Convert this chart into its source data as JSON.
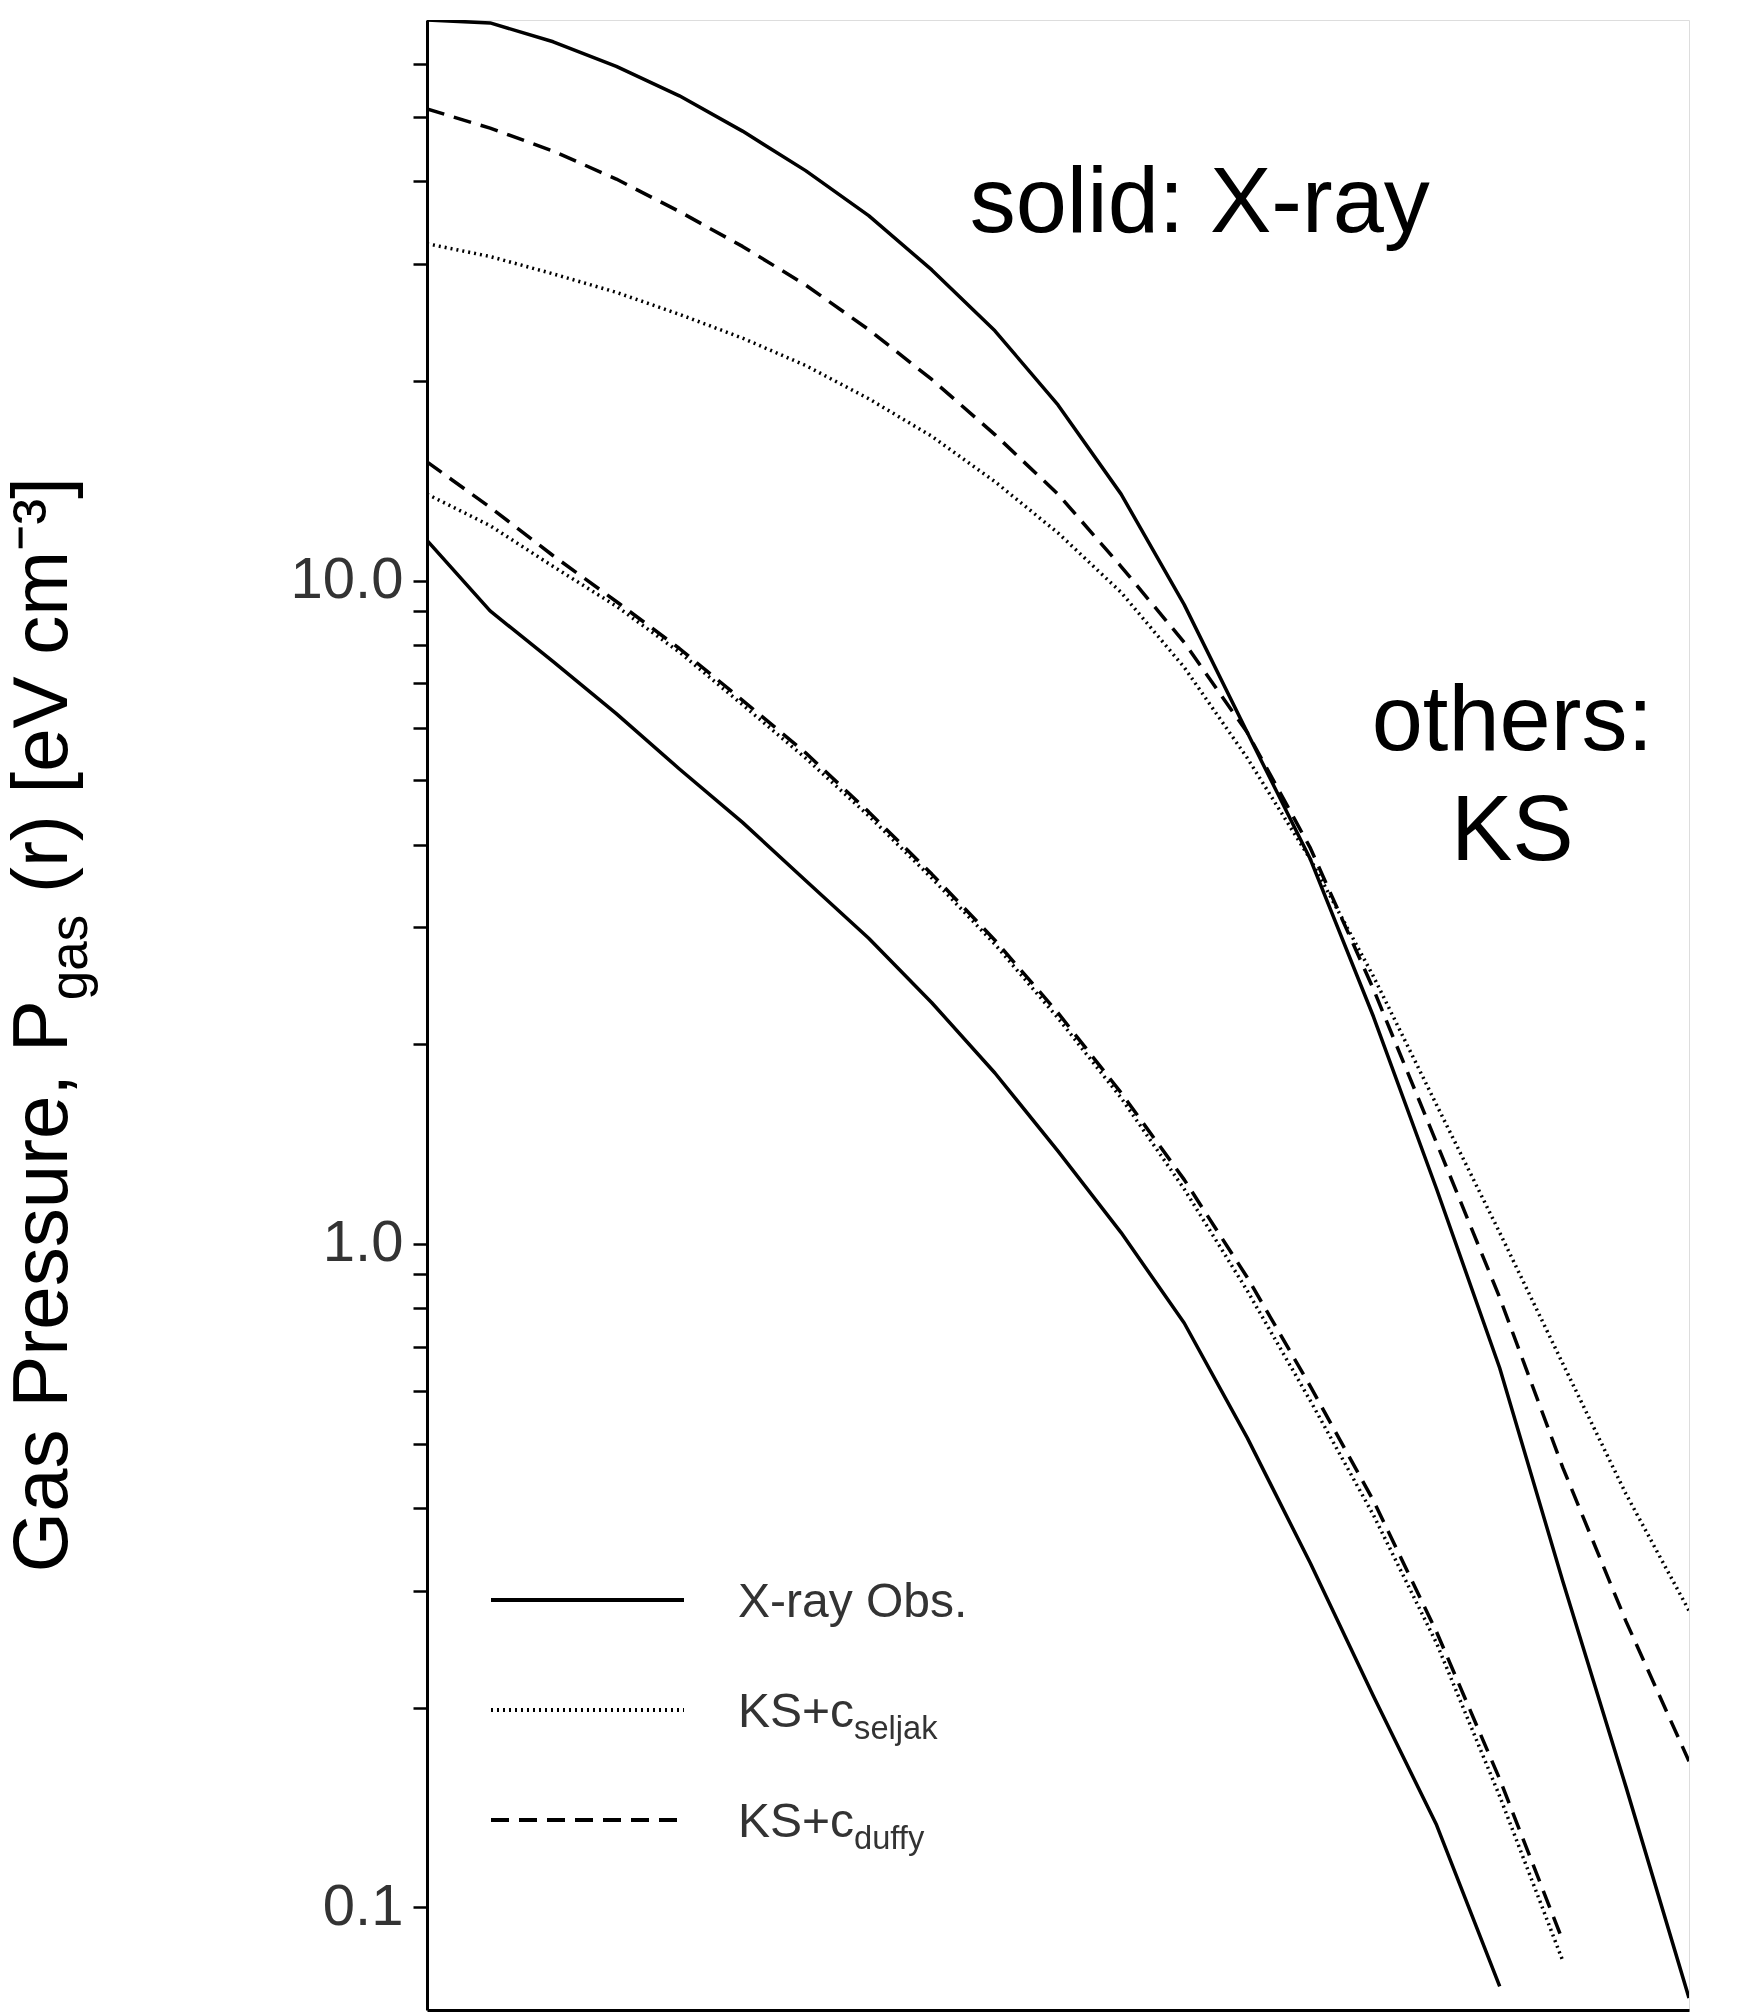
{
  "chart_data": {
    "type": "line",
    "ylabel": "Gas Pressure, P$_{gas}$ (r) [eV cm⁻³]",
    "log": "y",
    "ylim": [
      0.07,
      70
    ],
    "yticks": [
      {
        "value": 0.1,
        "label": "0.1"
      },
      {
        "value": 0.2,
        "label": null
      },
      {
        "value": 0.3,
        "label": null
      },
      {
        "value": 0.4,
        "label": null
      },
      {
        "value": 0.5,
        "label": null
      },
      {
        "value": 0.6,
        "label": null
      },
      {
        "value": 0.7,
        "label": null
      },
      {
        "value": 0.8,
        "label": null
      },
      {
        "value": 0.9,
        "label": null
      },
      {
        "value": 1,
        "label": "1.0"
      },
      {
        "value": 2,
        "label": null
      },
      {
        "value": 3,
        "label": null
      },
      {
        "value": 4,
        "label": null
      },
      {
        "value": 5,
        "label": null
      },
      {
        "value": 6,
        "label": null
      },
      {
        "value": 7,
        "label": null
      },
      {
        "value": 8,
        "label": null
      },
      {
        "value": 9,
        "label": null
      },
      {
        "value": 10,
        "label": "10.0"
      },
      {
        "value": 20,
        "label": null
      },
      {
        "value": 30,
        "label": null
      },
      {
        "value": 40,
        "label": null
      },
      {
        "value": 50,
        "label": null
      },
      {
        "value": 60,
        "label": null
      }
    ],
    "tick_labels": "y",
    "grid": false,
    "legend": "bottom left",
    "categories": [
      null,
      null,
      null,
      null,
      null,
      null,
      null,
      null,
      null,
      null,
      null,
      null,
      null,
      null,
      null,
      null,
      null,
      null,
      null,
      null,
      null
    ],
    "series": [
      {
        "name": "X-ray Obs.",
        "color": "#000000",
        "line_style": "solid",
        "values": [
          70,
          69.3,
          64.9,
          59.6,
          53.8,
          47.6,
          41.5,
          35.5,
          29.4,
          23.8,
          18.4,
          13.5,
          9.2,
          5.9,
          3.8,
          2.2,
          1.21,
          0.65,
          0.31,
          0.152,
          0.073
        ]
      },
      {
        "name": "KS+c$_{seljak}$",
        "color": "#000000",
        "line_style": "dotted",
        "values": [
          32.2,
          30.8,
          29.0,
          27.2,
          25.2,
          23.2,
          21.1,
          18.8,
          16.5,
          14.1,
          11.8,
          9.6,
          7.4,
          5.4,
          3.8,
          2.53,
          1.62,
          1.04,
          0.66,
          0.42,
          0.28
        ]
      },
      {
        "name": "KS+c$_{duffy}$",
        "color": "#000000",
        "line_style": "dashed",
        "values": [
          51.4,
          48.1,
          44.4,
          40.3,
          36.0,
          31.9,
          27.9,
          23.9,
          20.1,
          16.6,
          13.5,
          10.5,
          8.07,
          5.9,
          3.95,
          2.42,
          1.42,
          0.83,
          0.46,
          0.27,
          0.166
        ]
      },
      {
        "color": "#000000",
        "line_style": "solid",
        "values": [
          11.5,
          9.0,
          7.55,
          6.3,
          5.2,
          4.32,
          3.53,
          2.89,
          2.31,
          1.81,
          1.38,
          1.04,
          0.76,
          0.51,
          0.33,
          0.208,
          0.133,
          0.076,
          null,
          null,
          null
        ]
      },
      {
        "color": "#000000",
        "line_style": "dotted",
        "values": [
          13.5,
          12.1,
          10.5,
          9.15,
          7.8,
          6.5,
          5.4,
          4.42,
          3.56,
          2.83,
          2.19,
          1.66,
          1.21,
          0.85,
          0.58,
          0.39,
          0.25,
          0.147,
          0.083,
          null,
          null
        ]
      },
      {
        "color": "#000000",
        "line_style": "dashed",
        "values": [
          15.1,
          12.9,
          10.9,
          9.3,
          7.9,
          6.6,
          5.5,
          4.48,
          3.61,
          2.87,
          2.23,
          1.69,
          1.25,
          0.89,
          0.61,
          0.41,
          0.26,
          0.156,
          0.089,
          null,
          null
        ]
      }
    ],
    "annotations": [
      "solid: X-ray",
      "others: KS"
    ]
  }
}
